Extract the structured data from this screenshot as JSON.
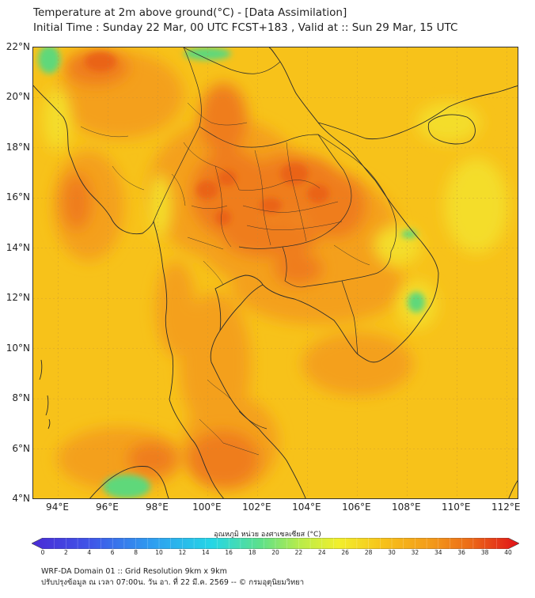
{
  "header": {
    "title_line1": "Temperature at 2m above ground(°C) - [Data Assimilation]",
    "title_line2": "Initial Time : Sunday 22 Mar, 00 UTC FCST+183 , Valid at :: Sun 29 Mar, 15 UTC"
  },
  "map": {
    "lat_labels": [
      "22°N",
      "20°N",
      "18°N",
      "16°N",
      "14°N",
      "12°N",
      "10°N",
      "8°N",
      "6°N",
      "4°N"
    ],
    "lon_labels": [
      "94°E",
      "96°E",
      "98°E",
      "100°E",
      "102°E",
      "104°E",
      "106°E",
      "108°E",
      "110°E",
      "112°E"
    ],
    "colors": {
      "base": "#f7c21a",
      "warm": "#f4a01a",
      "hot": "#ef7d1c",
      "hotter": "#ea6418",
      "cool": "#f4dd2a",
      "cold": "#5fd87a",
      "border": "#2b2b2b",
      "grid": "#b98a40"
    }
  },
  "colorbar": {
    "title": "อุณหภูมิ หน่วย องศาเซลเซียส (°C)",
    "ticks": [
      "0",
      "2",
      "4",
      "6",
      "8",
      "10",
      "12",
      "14",
      "16",
      "18",
      "20",
      "22",
      "24",
      "26",
      "28",
      "30",
      "32",
      "34",
      "36",
      "38",
      "40"
    ],
    "min": 0,
    "max": 40
  },
  "footer": {
    "line1": "WRF-DA Domain 01 :: Grid Resolution 9km x 9km",
    "line2": "ปรับปรุงข้อมูล ณ เวลา 07:00น. วัน อา. ที่ 22 มี.ค. 2569 -- © กรมอุตุนิยมวิทยา"
  }
}
